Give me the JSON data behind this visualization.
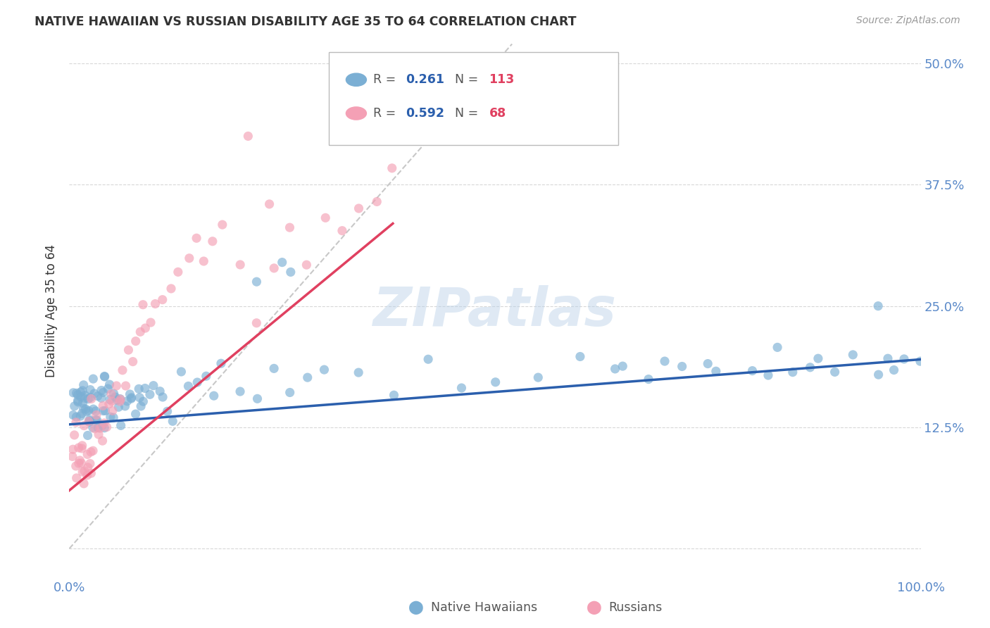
{
  "title": "NATIVE HAWAIIAN VS RUSSIAN DISABILITY AGE 35 TO 64 CORRELATION CHART",
  "source": "Source: ZipAtlas.com",
  "ylabel": "Disability Age 35 to 64",
  "xlim": [
    0.0,
    1.0
  ],
  "ylim": [
    -0.03,
    0.52
  ],
  "yticks": [
    0.0,
    0.125,
    0.25,
    0.375,
    0.5
  ],
  "yticklabels_right": [
    "",
    "12.5%",
    "25.0%",
    "37.5%",
    "50.0%"
  ],
  "native_R": 0.261,
  "native_N": 113,
  "russian_R": 0.592,
  "russian_N": 68,
  "blue_color": "#7bafd4",
  "pink_color": "#f4a0b5",
  "blue_line_color": "#2b5fad",
  "pink_line_color": "#e04060",
  "diagonal_color": "#c8c8c8",
  "watermark": "ZIPatlas",
  "background_color": "#ffffff",
  "grid_color": "#d8d8d8",
  "tick_label_color": "#5b8ac9",
  "title_color": "#333333",
  "source_color": "#999999",
  "legend_text_color": "#555555",
  "native_x": [
    0.003,
    0.005,
    0.006,
    0.008,
    0.009,
    0.01,
    0.01,
    0.012,
    0.012,
    0.013,
    0.014,
    0.015,
    0.015,
    0.016,
    0.017,
    0.018,
    0.018,
    0.019,
    0.02,
    0.02,
    0.021,
    0.022,
    0.022,
    0.023,
    0.024,
    0.025,
    0.025,
    0.026,
    0.027,
    0.028,
    0.029,
    0.03,
    0.031,
    0.032,
    0.033,
    0.034,
    0.035,
    0.036,
    0.037,
    0.038,
    0.039,
    0.04,
    0.041,
    0.042,
    0.043,
    0.044,
    0.045,
    0.046,
    0.047,
    0.048,
    0.05,
    0.052,
    0.054,
    0.056,
    0.058,
    0.06,
    0.062,
    0.065,
    0.068,
    0.07,
    0.073,
    0.075,
    0.078,
    0.08,
    0.083,
    0.085,
    0.088,
    0.09,
    0.095,
    0.1,
    0.105,
    0.11,
    0.115,
    0.12,
    0.13,
    0.14,
    0.15,
    0.16,
    0.17,
    0.18,
    0.2,
    0.22,
    0.24,
    0.26,
    0.28,
    0.3,
    0.34,
    0.38,
    0.42,
    0.46,
    0.5,
    0.55,
    0.6,
    0.65,
    0.7,
    0.75,
    0.8,
    0.82,
    0.85,
    0.88,
    0.9,
    0.92,
    0.95,
    0.97,
    0.98,
    1.0,
    0.96,
    0.87,
    0.83,
    0.76,
    0.72,
    0.68,
    0.64
  ],
  "native_y": [
    0.155,
    0.15,
    0.145,
    0.16,
    0.14,
    0.165,
    0.135,
    0.155,
    0.145,
    0.15,
    0.16,
    0.14,
    0.155,
    0.145,
    0.165,
    0.135,
    0.155,
    0.15,
    0.145,
    0.16,
    0.14,
    0.165,
    0.135,
    0.155,
    0.145,
    0.15,
    0.16,
    0.14,
    0.17,
    0.13,
    0.155,
    0.145,
    0.165,
    0.135,
    0.15,
    0.16,
    0.14,
    0.155,
    0.145,
    0.165,
    0.135,
    0.15,
    0.16,
    0.14,
    0.17,
    0.13,
    0.155,
    0.145,
    0.165,
    0.135,
    0.15,
    0.155,
    0.145,
    0.16,
    0.14,
    0.165,
    0.135,
    0.155,
    0.15,
    0.16,
    0.145,
    0.165,
    0.14,
    0.155,
    0.15,
    0.16,
    0.145,
    0.17,
    0.155,
    0.165,
    0.15,
    0.155,
    0.16,
    0.145,
    0.175,
    0.17,
    0.16,
    0.175,
    0.165,
    0.18,
    0.17,
    0.175,
    0.165,
    0.18,
    0.17,
    0.175,
    0.18,
    0.175,
    0.185,
    0.18,
    0.185,
    0.18,
    0.19,
    0.185,
    0.185,
    0.195,
    0.185,
    0.19,
    0.185,
    0.19,
    0.185,
    0.195,
    0.185,
    0.19,
    0.195,
    0.195,
    0.19,
    0.185,
    0.19,
    0.185,
    0.19,
    0.185,
    0.185
  ],
  "russian_x": [
    0.003,
    0.005,
    0.006,
    0.007,
    0.008,
    0.009,
    0.01,
    0.011,
    0.012,
    0.013,
    0.014,
    0.015,
    0.016,
    0.017,
    0.018,
    0.019,
    0.02,
    0.021,
    0.022,
    0.023,
    0.024,
    0.025,
    0.026,
    0.027,
    0.028,
    0.03,
    0.032,
    0.034,
    0.036,
    0.038,
    0.04,
    0.042,
    0.044,
    0.046,
    0.048,
    0.05,
    0.052,
    0.055,
    0.058,
    0.06,
    0.063,
    0.066,
    0.07,
    0.074,
    0.078,
    0.082,
    0.086,
    0.09,
    0.095,
    0.1,
    0.11,
    0.12,
    0.13,
    0.14,
    0.15,
    0.16,
    0.17,
    0.18,
    0.2,
    0.22,
    0.24,
    0.26,
    0.28,
    0.3,
    0.32,
    0.34,
    0.36,
    0.38
  ],
  "russian_y": [
    0.1,
    0.09,
    0.095,
    0.085,
    0.11,
    0.08,
    0.1,
    0.09,
    0.11,
    0.085,
    0.095,
    0.105,
    0.08,
    0.11,
    0.095,
    0.085,
    0.105,
    0.09,
    0.115,
    0.08,
    0.11,
    0.095,
    0.12,
    0.085,
    0.11,
    0.12,
    0.13,
    0.115,
    0.135,
    0.125,
    0.14,
    0.13,
    0.145,
    0.135,
    0.15,
    0.145,
    0.155,
    0.165,
    0.16,
    0.17,
    0.18,
    0.185,
    0.2,
    0.21,
    0.215,
    0.225,
    0.23,
    0.24,
    0.25,
    0.26,
    0.27,
    0.275,
    0.28,
    0.29,
    0.3,
    0.305,
    0.285,
    0.31,
    0.295,
    0.26,
    0.29,
    0.33,
    0.32,
    0.34,
    0.33,
    0.36,
    0.35,
    0.38
  ]
}
